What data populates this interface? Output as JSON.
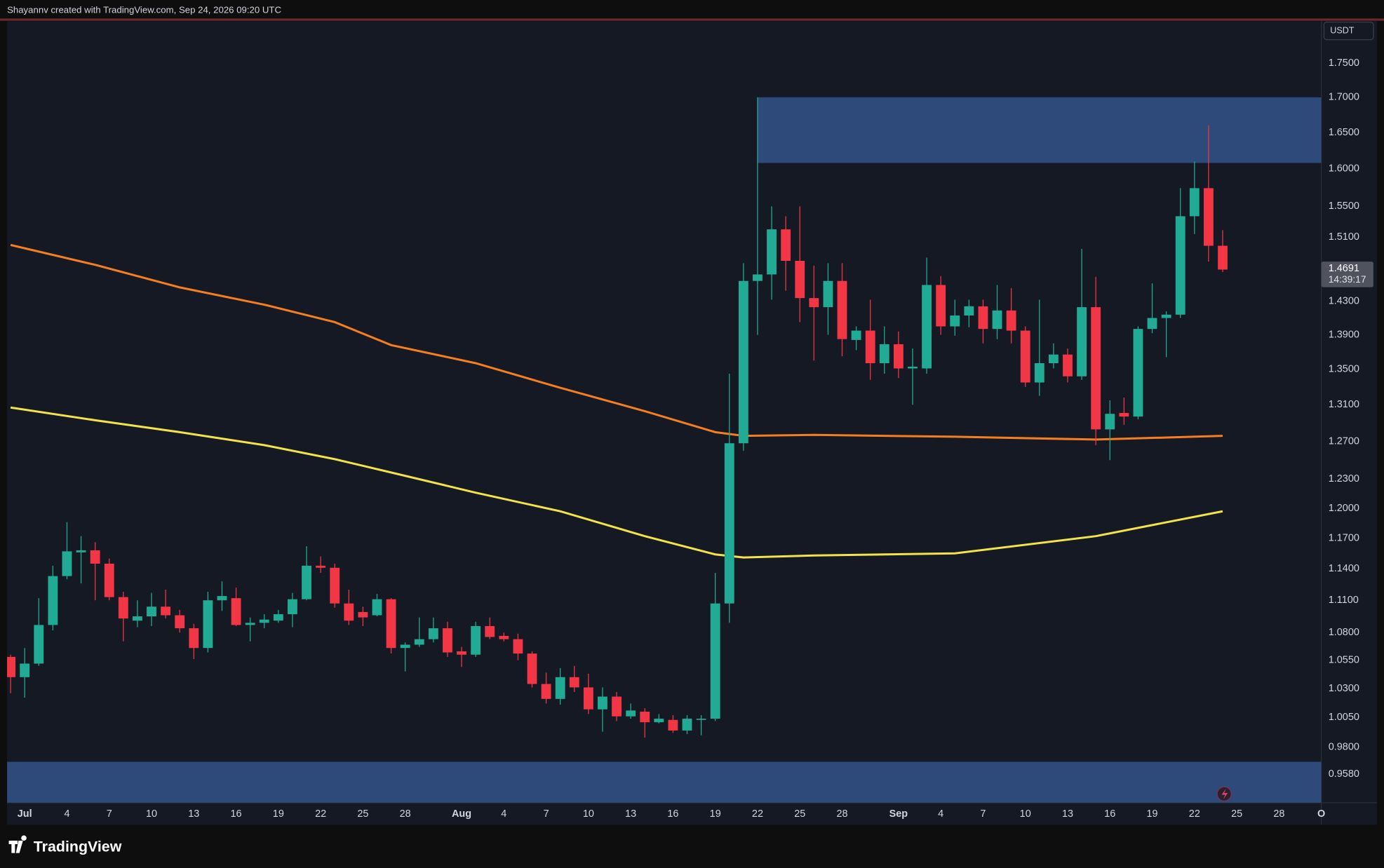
{
  "header": "Shayannv created with TradingView.com, Sep 24, 2026 09:20 UTC",
  "footer": "TradingView",
  "chart_data": {
    "type": "candlestick",
    "currency": "USDT",
    "log_scale": true,
    "grid": false,
    "up_color": "#22ab94",
    "down_color": "#f23645",
    "xlim": [
      "06-30",
      "10-01"
    ],
    "ylim": [
      0.935,
      1.816
    ],
    "yticks": [
      {
        "value": 1.75,
        "label": "1.7500"
      },
      {
        "value": 1.7,
        "label": "1.7000"
      },
      {
        "value": 1.65,
        "label": "1.6500"
      },
      {
        "value": 1.6,
        "label": "1.6000"
      },
      {
        "value": 1.55,
        "label": "1.5500"
      },
      {
        "value": 1.51,
        "label": "1.5100"
      },
      {
        "value": 1.43,
        "label": "1.4300"
      },
      {
        "value": 1.39,
        "label": "1.3900"
      },
      {
        "value": 1.35,
        "label": "1.3500"
      },
      {
        "value": 1.31,
        "label": "1.3100"
      },
      {
        "value": 1.27,
        "label": "1.2700"
      },
      {
        "value": 1.23,
        "label": "1.2300"
      },
      {
        "value": 1.2,
        "label": "1.2000"
      },
      {
        "value": 1.17,
        "label": "1.1700"
      },
      {
        "value": 1.14,
        "label": "1.1400"
      },
      {
        "value": 1.11,
        "label": "1.1100"
      },
      {
        "value": 1.08,
        "label": "1.0800"
      },
      {
        "value": 1.055,
        "label": "1.0550"
      },
      {
        "value": 1.03,
        "label": "1.0300"
      },
      {
        "value": 1.005,
        "label": "1.0050"
      },
      {
        "value": 0.98,
        "label": "0.9800"
      },
      {
        "value": 0.958,
        "label": "0.9580"
      }
    ],
    "xticks": [
      {
        "value": "07-01",
        "label": "Jul"
      },
      {
        "value": "07-04",
        "label": "4"
      },
      {
        "value": "07-07",
        "label": "7"
      },
      {
        "value": "07-10",
        "label": "10"
      },
      {
        "value": "07-13",
        "label": "13"
      },
      {
        "value": "07-16",
        "label": "16"
      },
      {
        "value": "07-19",
        "label": "19"
      },
      {
        "value": "07-22",
        "label": "22"
      },
      {
        "value": "07-25",
        "label": "25"
      },
      {
        "value": "07-28",
        "label": "28"
      },
      {
        "value": "08-01",
        "label": "Aug"
      },
      {
        "value": "08-04",
        "label": "4"
      },
      {
        "value": "08-07",
        "label": "7"
      },
      {
        "value": "08-10",
        "label": "10"
      },
      {
        "value": "08-13",
        "label": "13"
      },
      {
        "value": "08-16",
        "label": "16"
      },
      {
        "value": "08-19",
        "label": "19"
      },
      {
        "value": "08-22",
        "label": "22"
      },
      {
        "value": "08-25",
        "label": "25"
      },
      {
        "value": "08-28",
        "label": "28"
      },
      {
        "value": "09-01",
        "label": "Sep"
      },
      {
        "value": "09-04",
        "label": "4"
      },
      {
        "value": "09-07",
        "label": "7"
      },
      {
        "value": "09-10",
        "label": "10"
      },
      {
        "value": "09-13",
        "label": "13"
      },
      {
        "value": "09-16",
        "label": "16"
      },
      {
        "value": "09-19",
        "label": "19"
      },
      {
        "value": "09-22",
        "label": "22"
      },
      {
        "value": "09-25",
        "label": "25"
      },
      {
        "value": "09-28",
        "label": "28"
      },
      {
        "value": "10-01",
        "label": "O"
      }
    ],
    "x": [
      "06-30",
      "07-01",
      "07-02",
      "07-03",
      "07-04",
      "07-05",
      "07-06",
      "07-07",
      "07-08",
      "07-09",
      "07-10",
      "07-11",
      "07-12",
      "07-13",
      "07-14",
      "07-15",
      "07-16",
      "07-17",
      "07-18",
      "07-19",
      "07-20",
      "07-21",
      "07-22",
      "07-23",
      "07-24",
      "07-25",
      "07-26",
      "07-27",
      "07-28",
      "07-29",
      "07-30",
      "07-31",
      "08-01",
      "08-02",
      "08-03",
      "08-04",
      "08-05",
      "08-06",
      "08-07",
      "08-08",
      "08-09",
      "08-10",
      "08-11",
      "08-12",
      "08-13",
      "08-14",
      "08-15",
      "08-16",
      "08-17",
      "08-18",
      "08-19",
      "08-20",
      "08-21",
      "08-22",
      "08-23",
      "08-24",
      "08-25",
      "08-26",
      "08-27",
      "08-28",
      "08-29",
      "08-30",
      "08-31",
      "09-01",
      "09-02",
      "09-03",
      "09-04",
      "09-05",
      "09-06",
      "09-07",
      "09-08",
      "09-09",
      "09-10",
      "09-11",
      "09-12",
      "09-13",
      "09-14",
      "09-15",
      "09-16",
      "09-17",
      "09-18",
      "09-19",
      "09-20",
      "09-21",
      "09-22",
      "09-23",
      "09-24"
    ],
    "open": [
      1.058,
      1.04,
      1.052,
      1.087,
      1.133,
      1.156,
      1.158,
      1.145,
      1.113,
      1.091,
      1.095,
      1.104,
      1.096,
      1.084,
      1.066,
      1.11,
      1.112,
      1.087,
      1.089,
      1.091,
      1.097,
      1.111,
      1.143,
      1.141,
      1.107,
      1.099,
      1.096,
      1.111,
      1.066,
      1.069,
      1.074,
      1.084,
      1.063,
      1.06,
      1.086,
      1.077,
      1.074,
      1.061,
      1.034,
      1.021,
      1.04,
      1.031,
      1.012,
      1.023,
      1.006,
      1.01,
      1.001,
      1.003,
      0.994,
      1.003,
      1.004,
      1.107,
      1.268,
      1.455,
      1.463,
      1.52,
      1.48,
      1.434,
      1.423,
      1.455,
      1.384,
      1.395,
      1.357,
      1.379,
      1.351,
      1.351,
      1.45,
      1.4,
      1.413,
      1.424,
      1.397,
      1.419,
      1.395,
      1.335,
      1.357,
      1.367,
      1.342,
      1.423,
      1.283,
      1.301,
      1.297,
      1.397,
      1.41,
      1.414,
      1.537,
      1.574,
      1.499
    ],
    "high": [
      1.06,
      1.066,
      1.112,
      1.143,
      1.186,
      1.172,
      1.166,
      1.15,
      1.118,
      1.11,
      1.117,
      1.12,
      1.101,
      1.088,
      1.118,
      1.128,
      1.122,
      1.094,
      1.097,
      1.101,
      1.117,
      1.162,
      1.152,
      1.145,
      1.12,
      1.104,
      1.116,
      1.112,
      1.071,
      1.094,
      1.094,
      1.09,
      1.067,
      1.09,
      1.094,
      1.08,
      1.079,
      1.063,
      1.044,
      1.048,
      1.05,
      1.043,
      1.031,
      1.027,
      1.017,
      1.013,
      1.008,
      1.007,
      1.007,
      1.007,
      1.136,
      1.345,
      1.477,
      1.7,
      1.55,
      1.537,
      1.55,
      1.474,
      1.477,
      1.477,
      1.4,
      1.432,
      1.4,
      1.394,
      1.374,
      1.484,
      1.461,
      1.432,
      1.432,
      1.432,
      1.45,
      1.446,
      1.4,
      1.432,
      1.38,
      1.374,
      1.495,
      1.46,
      1.315,
      1.318,
      1.4,
      1.452,
      1.418,
      1.574,
      1.61,
      1.66,
      1.519
    ],
    "low": [
      1.026,
      1.022,
      1.05,
      1.082,
      1.13,
      1.126,
      1.11,
      1.11,
      1.072,
      1.085,
      1.086,
      1.093,
      1.08,
      1.056,
      1.062,
      1.1,
      1.086,
      1.072,
      1.084,
      1.089,
      1.085,
      1.11,
      1.136,
      1.103,
      1.087,
      1.086,
      1.095,
      1.061,
      1.045,
      1.067,
      1.071,
      1.058,
      1.049,
      1.058,
      1.074,
      1.072,
      1.055,
      1.031,
      1.017,
      1.016,
      1.027,
      1.008,
      0.993,
      1.002,
      1.004,
      0.988,
      1.0,
      0.992,
      0.991,
      0.99,
      1.002,
      1.089,
      1.26,
      1.39,
      1.432,
      1.443,
      1.405,
      1.36,
      1.39,
      1.365,
      1.372,
      1.338,
      1.345,
      1.34,
      1.31,
      1.345,
      1.39,
      1.389,
      1.399,
      1.38,
      1.385,
      1.38,
      1.33,
      1.32,
      1.351,
      1.335,
      1.338,
      1.266,
      1.25,
      1.288,
      1.294,
      1.392,
      1.364,
      1.41,
      1.514,
      1.479,
      1.466
    ],
    "close": [
      1.04,
      1.052,
      1.087,
      1.133,
      1.157,
      1.158,
      1.145,
      1.113,
      1.093,
      1.095,
      1.104,
      1.096,
      1.084,
      1.066,
      1.11,
      1.114,
      1.087,
      1.089,
      1.092,
      1.097,
      1.111,
      1.143,
      1.141,
      1.107,
      1.091,
      1.094,
      1.111,
      1.066,
      1.069,
      1.074,
      1.084,
      1.062,
      1.06,
      1.086,
      1.076,
      1.074,
      1.061,
      1.034,
      1.021,
      1.04,
      1.031,
      1.012,
      1.023,
      1.006,
      1.011,
      1.001,
      1.004,
      0.994,
      1.004,
      1.004,
      1.107,
      1.268,
      1.455,
      1.463,
      1.52,
      1.48,
      1.434,
      1.423,
      1.455,
      1.385,
      1.395,
      1.357,
      1.379,
      1.351,
      1.353,
      1.45,
      1.4,
      1.413,
      1.424,
      1.397,
      1.419,
      1.395,
      1.335,
      1.357,
      1.367,
      1.342,
      1.423,
      1.283,
      1.3,
      1.297,
      1.397,
      1.41,
      1.414,
      1.537,
      1.574,
      1.499,
      1.4691
    ],
    "lines": [
      {
        "color": "#f57f20",
        "x": [
          "06-30",
          "07-06",
          "07-12",
          "07-18",
          "07-23",
          "07-27",
          "08-02",
          "08-08",
          "08-14",
          "08-19",
          "08-21",
          "08-26",
          "09-05",
          "09-15",
          "09-24"
        ],
        "values": [
          1.5,
          1.475,
          1.447,
          1.426,
          1.405,
          1.378,
          1.357,
          1.329,
          1.303,
          1.28,
          1.276,
          1.277,
          1.275,
          1.272,
          1.276
        ]
      },
      {
        "color": "#f2e34a",
        "x": [
          "06-30",
          "07-06",
          "07-12",
          "07-18",
          "07-23",
          "07-27",
          "08-02",
          "08-08",
          "08-14",
          "08-19",
          "08-21",
          "08-26",
          "09-05",
          "09-15",
          "09-24"
        ],
        "values": [
          1.307,
          1.293,
          1.28,
          1.266,
          1.251,
          1.237,
          1.216,
          1.197,
          1.172,
          1.154,
          1.151,
          1.153,
          1.155,
          1.172,
          1.197
        ]
      }
    ],
    "zones": [
      {
        "color": "#2e4a7a",
        "x_start": "08-22",
        "y": [
          1.608,
          1.7
        ]
      },
      {
        "color": "#2e4a7a",
        "y": [
          0.935,
          0.968
        ]
      }
    ],
    "last_price": {
      "value": 1.4691,
      "label": "1.4691"
    },
    "countdown": "14:39:17"
  }
}
